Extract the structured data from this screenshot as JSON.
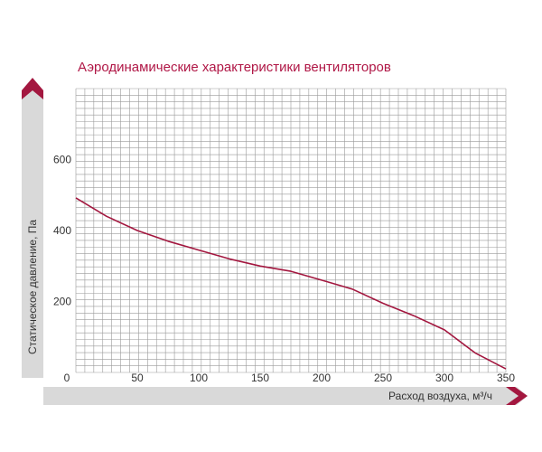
{
  "chart_data": {
    "type": "line",
    "title": "Аэродинамические характеристики вентиляторов",
    "xlabel": "Расход воздуха, м³/ч",
    "ylabel": "Статическое давление, Па",
    "xlim": [
      0,
      350
    ],
    "ylim": [
      0,
      800
    ],
    "x_ticks": [
      "0",
      "50",
      "100",
      "150",
      "200",
      "250",
      "300",
      "350"
    ],
    "y_ticks": [
      "200",
      "400",
      "600"
    ],
    "grid": true,
    "series": [
      {
        "color": "#a3173f",
        "x": [
          0,
          25,
          50,
          75,
          100,
          125,
          150,
          175,
          200,
          225,
          250,
          275,
          300,
          325,
          350
        ],
        "y": [
          492,
          440,
          400,
          370,
          345,
          320,
          300,
          285,
          260,
          235,
          195,
          160,
          120,
          55,
          10
        ]
      }
    ]
  },
  "colors": {
    "accent": "#a3173f",
    "grid": "#9a9a9a",
    "axis_band": "#d9d9d9"
  }
}
